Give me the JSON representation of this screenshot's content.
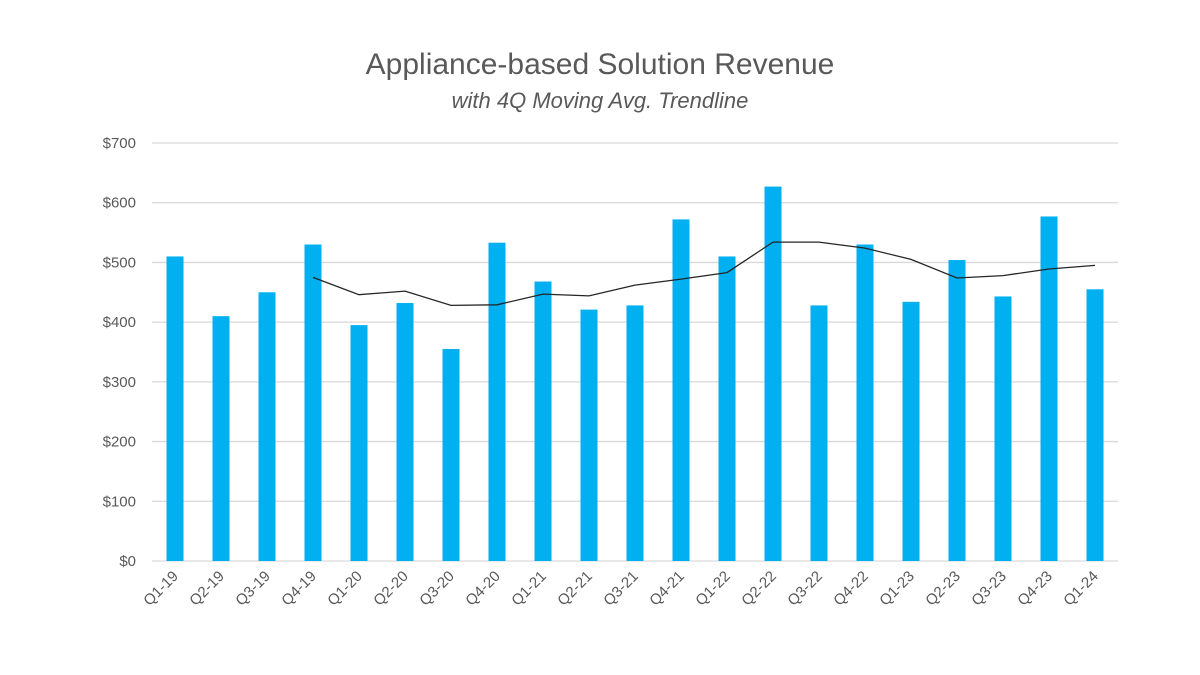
{
  "chart_data": {
    "type": "bar",
    "title": "Appliance-based Solution Revenue",
    "subtitle": "with 4Q Moving Avg. Trendline",
    "xlabel": "",
    "ylabel": "",
    "ylim": [
      0,
      700
    ],
    "yticks": [
      0,
      100,
      200,
      300,
      400,
      500,
      600,
      700
    ],
    "ytick_labels": [
      "$0",
      "$100",
      "$200",
      "$300",
      "$400",
      "$500",
      "$600",
      "$700"
    ],
    "grid": true,
    "legend": "none",
    "categories": [
      "Q1-19",
      "Q2-19",
      "Q3-19",
      "Q4-19",
      "Q1-20",
      "Q2-20",
      "Q3-20",
      "Q4-20",
      "Q1-21",
      "Q2-21",
      "Q3-21",
      "Q4-21",
      "Q1-22",
      "Q2-22",
      "Q3-22",
      "Q4-22",
      "Q1-23",
      "Q2-23",
      "Q3-23",
      "Q4-23",
      "Q1-24"
    ],
    "series": [
      {
        "type": "bar",
        "color": "#00b0f0",
        "values": [
          510,
          410,
          450,
          530,
          395,
          432,
          355,
          533,
          468,
          421,
          428,
          572,
          510,
          627,
          428,
          530,
          434,
          504,
          443,
          577,
          455
        ]
      },
      {
        "type": "line",
        "color": "#262626",
        "values": [
          null,
          null,
          null,
          475,
          446,
          452,
          428,
          429,
          447,
          444,
          462,
          472,
          483,
          534,
          534,
          524,
          505,
          474,
          478,
          489,
          495
        ]
      }
    ]
  }
}
